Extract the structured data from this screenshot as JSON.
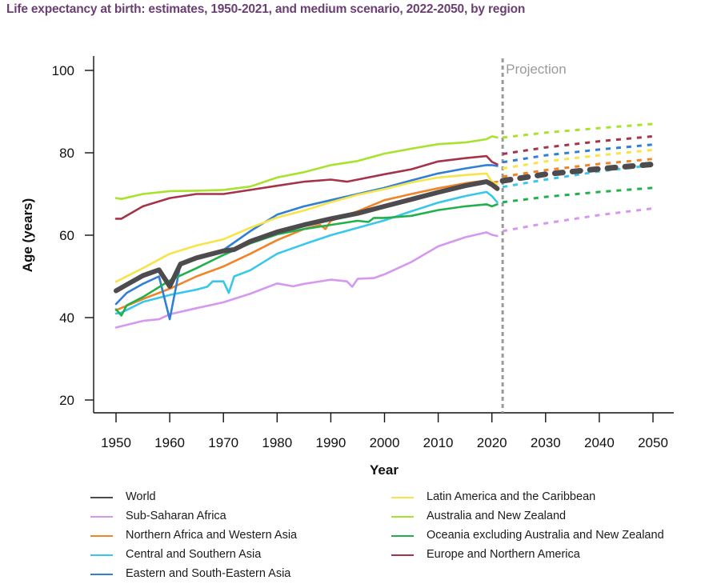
{
  "title": "Life expectancy at birth: estimates, 1950-2021, and medium scenario, 2022-2050, by region",
  "chart_data": {
    "type": "line",
    "title": "Life expectancy at birth: estimates, 1950-2021, and medium scenario, 2022-2050, by region",
    "xlabel": "Year",
    "ylabel": "Age (years)",
    "xlim": [
      1950,
      2050
    ],
    "ylim": [
      20,
      100
    ],
    "xticks": [
      1950,
      1960,
      1970,
      1980,
      1990,
      2000,
      2010,
      2020,
      2030,
      2040,
      2050
    ],
    "yticks": [
      20,
      40,
      60,
      80,
      100
    ],
    "grid": false,
    "projection_marker": {
      "year": 2022,
      "label": "Projection"
    },
    "legend_placement": "bottom",
    "series": [
      {
        "name": "World",
        "color": "#4d4b4d",
        "emphasis": true,
        "estimates": [
          [
            1950,
            46.5
          ],
          [
            1952,
            48
          ],
          [
            1955,
            50.2
          ],
          [
            1958,
            51.6
          ],
          [
            1960,
            47.6
          ],
          [
            1962,
            53
          ],
          [
            1965,
            54.5
          ],
          [
            1970,
            56.2
          ],
          [
            1972,
            56.5
          ],
          [
            1975,
            58.5
          ],
          [
            1980,
            60.8
          ],
          [
            1985,
            62.5
          ],
          [
            1990,
            64
          ],
          [
            1995,
            65.3
          ],
          [
            2000,
            67
          ],
          [
            2005,
            68.7
          ],
          [
            2010,
            70.4
          ],
          [
            2015,
            72
          ],
          [
            2019,
            73
          ],
          [
            2020,
            72.3
          ],
          [
            2021,
            71.3
          ]
        ],
        "projection": [
          [
            2022,
            73.2
          ],
          [
            2030,
            74.8
          ],
          [
            2040,
            76.1
          ],
          [
            2050,
            77.2
          ]
        ]
      },
      {
        "name": "Sub-Saharan Africa",
        "color": "#d598ee",
        "estimates": [
          [
            1950,
            37.6
          ],
          [
            1955,
            39.2
          ],
          [
            1958,
            39.6
          ],
          [
            1960,
            40.8
          ],
          [
            1965,
            42.3
          ],
          [
            1970,
            43.7
          ],
          [
            1975,
            45.8
          ],
          [
            1980,
            48.3
          ],
          [
            1983,
            47.6
          ],
          [
            1985,
            48.2
          ],
          [
            1990,
            49.2
          ],
          [
            1993,
            48.8
          ],
          [
            1994,
            47.5
          ],
          [
            1995,
            49.4
          ],
          [
            1998,
            49.6
          ],
          [
            2000,
            50.5
          ],
          [
            2005,
            53.5
          ],
          [
            2010,
            57.3
          ],
          [
            2015,
            59.5
          ],
          [
            2019,
            60.7
          ],
          [
            2020,
            60.1
          ],
          [
            2021,
            59.8
          ]
        ],
        "projection": [
          [
            2022,
            61
          ],
          [
            2030,
            62.9
          ],
          [
            2040,
            64.9
          ],
          [
            2050,
            66.5
          ]
        ]
      },
      {
        "name": "Northern Africa and Western Asia",
        "color": "#f08426",
        "estimates": [
          [
            1950,
            41.8
          ],
          [
            1955,
            44.5
          ],
          [
            1960,
            47
          ],
          [
            1965,
            50
          ],
          [
            1970,
            52.4
          ],
          [
            1975,
            55.5
          ],
          [
            1980,
            58.8
          ],
          [
            1985,
            61.5
          ],
          [
            1988,
            62.5
          ],
          [
            1989,
            61.5
          ],
          [
            1990,
            63.5
          ],
          [
            1995,
            65.8
          ],
          [
            2000,
            68.5
          ],
          [
            2005,
            70
          ],
          [
            2010,
            71.4
          ],
          [
            2015,
            72.6
          ],
          [
            2019,
            73.3
          ],
          [
            2020,
            72.8
          ],
          [
            2021,
            73
          ]
        ],
        "projection": [
          [
            2022,
            74.2
          ],
          [
            2030,
            75.8
          ],
          [
            2040,
            77.3
          ],
          [
            2050,
            78.5
          ]
        ]
      },
      {
        "name": "Central and Southern Asia",
        "color": "#38c7ec",
        "estimates": [
          [
            1950,
            41
          ],
          [
            1951,
            41.2
          ],
          [
            1955,
            43.8
          ],
          [
            1960,
            45.5
          ],
          [
            1965,
            46.8
          ],
          [
            1967,
            47.5
          ],
          [
            1968,
            48.8
          ],
          [
            1970,
            48.8
          ],
          [
            1971,
            46
          ],
          [
            1972,
            50
          ],
          [
            1975,
            51.5
          ],
          [
            1980,
            55.5
          ],
          [
            1985,
            57.8
          ],
          [
            1990,
            60
          ],
          [
            1995,
            61.8
          ],
          [
            2000,
            63.6
          ],
          [
            2005,
            65.8
          ],
          [
            2010,
            67.9
          ],
          [
            2015,
            69.5
          ],
          [
            2019,
            70.5
          ],
          [
            2020,
            69.5
          ],
          [
            2021,
            68
          ]
        ],
        "projection": [
          [
            2022,
            71.7
          ],
          [
            2030,
            73.5
          ],
          [
            2040,
            75.5
          ],
          [
            2050,
            77
          ]
        ]
      },
      {
        "name": "Eastern and South-Eastern Asia",
        "color": "#2f7fd6",
        "estimates": [
          [
            1950,
            43.3
          ],
          [
            1952,
            46
          ],
          [
            1955,
            48.2
          ],
          [
            1958,
            50
          ],
          [
            1960,
            39.6
          ],
          [
            1962,
            53
          ],
          [
            1965,
            54.5
          ],
          [
            1970,
            56.4
          ],
          [
            1975,
            61
          ],
          [
            1980,
            65
          ],
          [
            1985,
            67
          ],
          [
            1990,
            68.5
          ],
          [
            1995,
            70
          ],
          [
            2000,
            71.5
          ],
          [
            2005,
            73.3
          ],
          [
            2010,
            75
          ],
          [
            2015,
            76.2
          ],
          [
            2019,
            77
          ],
          [
            2020,
            77
          ],
          [
            2021,
            76.8
          ]
        ],
        "projection": [
          [
            2022,
            77.7
          ],
          [
            2030,
            79.4
          ],
          [
            2040,
            80.8
          ],
          [
            2050,
            82
          ]
        ]
      },
      {
        "name": "Latin America and the Caribbean",
        "color": "#f7e34a",
        "estimates": [
          [
            1950,
            48.7
          ],
          [
            1955,
            52
          ],
          [
            1960,
            55.5
          ],
          [
            1965,
            57.5
          ],
          [
            1970,
            59
          ],
          [
            1975,
            61.8
          ],
          [
            1980,
            64.3
          ],
          [
            1985,
            66
          ],
          [
            1990,
            68
          ],
          [
            1995,
            69.8
          ],
          [
            2000,
            71.2
          ],
          [
            2005,
            72.8
          ],
          [
            2010,
            74
          ],
          [
            2015,
            74.6
          ],
          [
            2019,
            75
          ],
          [
            2020,
            73
          ],
          [
            2021,
            72.3
          ]
        ],
        "projection": [
          [
            2022,
            76.2
          ],
          [
            2030,
            77.9
          ],
          [
            2040,
            79.4
          ],
          [
            2050,
            80.7
          ]
        ]
      },
      {
        "name": "Australia and New Zealand",
        "color": "#a7e32c",
        "estimates": [
          [
            1950,
            69
          ],
          [
            1951,
            68.8
          ],
          [
            1955,
            70
          ],
          [
            1960,
            70.7
          ],
          [
            1965,
            70.8
          ],
          [
            1970,
            71
          ],
          [
            1975,
            71.8
          ],
          [
            1980,
            74
          ],
          [
            1985,
            75.3
          ],
          [
            1990,
            77
          ],
          [
            1995,
            78
          ],
          [
            2000,
            79.8
          ],
          [
            2005,
            81
          ],
          [
            2010,
            82.1
          ],
          [
            2015,
            82.5
          ],
          [
            2019,
            83.3
          ],
          [
            2020,
            84
          ],
          [
            2021,
            83.7
          ]
        ],
        "projection": [
          [
            2022,
            83.7
          ],
          [
            2030,
            84.9
          ],
          [
            2040,
            86
          ],
          [
            2050,
            87
          ]
        ]
      },
      {
        "name": "Oceania excluding Australia and New Zealand",
        "color": "#22b04c",
        "estimates": [
          [
            1950,
            42
          ],
          [
            1951,
            40.5
          ],
          [
            1952,
            43
          ],
          [
            1955,
            45
          ],
          [
            1960,
            49
          ],
          [
            1965,
            52
          ],
          [
            1970,
            55.2
          ],
          [
            1975,
            58
          ],
          [
            1980,
            60.2
          ],
          [
            1985,
            61.5
          ],
          [
            1990,
            62.5
          ],
          [
            1995,
            63.5
          ],
          [
            1997,
            63.2
          ],
          [
            1998,
            64.2
          ],
          [
            2000,
            64.2
          ],
          [
            2005,
            64.7
          ],
          [
            2010,
            66.1
          ],
          [
            2015,
            67
          ],
          [
            2019,
            67.5
          ],
          [
            2020,
            67
          ],
          [
            2021,
            67.5
          ]
        ],
        "projection": [
          [
            2022,
            68
          ],
          [
            2030,
            69.3
          ],
          [
            2040,
            70.5
          ],
          [
            2050,
            71.5
          ]
        ]
      },
      {
        "name": "Europe and Northern America",
        "color": "#a5334a",
        "estimates": [
          [
            1950,
            64
          ],
          [
            1951,
            64
          ],
          [
            1955,
            67
          ],
          [
            1960,
            69
          ],
          [
            1965,
            70
          ],
          [
            1970,
            70
          ],
          [
            1975,
            71
          ],
          [
            1980,
            72
          ],
          [
            1985,
            73
          ],
          [
            1990,
            73.5
          ],
          [
            1993,
            73
          ],
          [
            1995,
            73.5
          ],
          [
            2000,
            74.8
          ],
          [
            2005,
            76
          ],
          [
            2010,
            77.9
          ],
          [
            2015,
            78.7
          ],
          [
            2019,
            79.2
          ],
          [
            2020,
            77.8
          ],
          [
            2021,
            77.2
          ]
        ],
        "projection": [
          [
            2022,
            79.7
          ],
          [
            2030,
            81.3
          ],
          [
            2040,
            82.8
          ],
          [
            2050,
            84
          ]
        ]
      }
    ]
  }
}
